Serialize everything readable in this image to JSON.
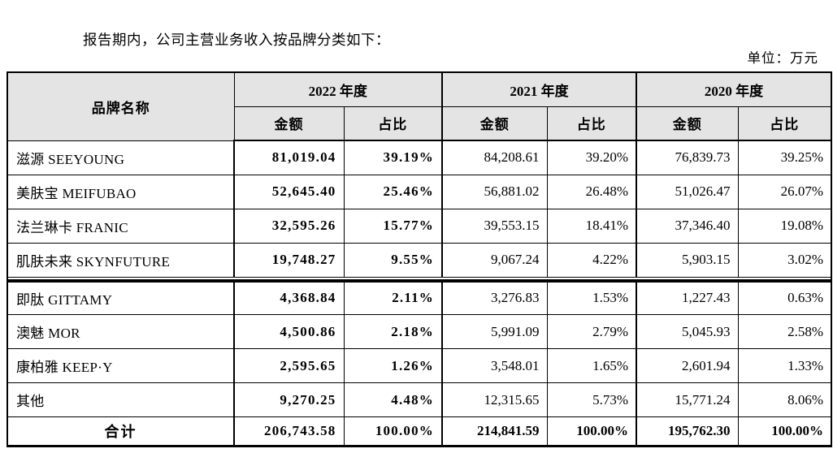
{
  "page": {
    "intro_text": "报告期内，公司主营业务收入按品牌分类如下：",
    "unit_label": "单位：万元"
  },
  "table": {
    "brand_col_header": "品牌名称",
    "year_groups": [
      {
        "label": "2022 年度",
        "amount_header": "金额",
        "ratio_header": "占比"
      },
      {
        "label": "2021 年度",
        "amount_header": "金额",
        "ratio_header": "占比"
      },
      {
        "label": "2020 年度",
        "amount_header": "金额",
        "ratio_header": "占比"
      }
    ],
    "rows": [
      {
        "brand": "滋源 SEEYOUNG",
        "values": [
          "81,019.04",
          "39.19%",
          "84,208.61",
          "39.20%",
          "76,839.73",
          "39.25%"
        ]
      },
      {
        "brand": "美肤宝 MEIFUBAO",
        "values": [
          "52,645.40",
          "25.46%",
          "56,881.02",
          "26.48%",
          "51,026.47",
          "26.07%"
        ]
      },
      {
        "brand": "法兰琳卡 FRANIC",
        "values": [
          "32,595.26",
          "15.77%",
          "39,553.15",
          "18.41%",
          "37,346.40",
          "19.08%"
        ]
      },
      {
        "brand": "肌肤未来 SKYNFUTURE",
        "values": [
          "19,748.27",
          "9.55%",
          "9,067.24",
          "4.22%",
          "5,903.15",
          "3.02%"
        ]
      },
      {
        "brand": "即肽 GITTAMY",
        "values": [
          "4,368.84",
          "2.11%",
          "3,276.83",
          "1.53%",
          "1,227.43",
          "0.63%"
        ]
      },
      {
        "brand": "澳魅 MOR",
        "values": [
          "4,500.86",
          "2.18%",
          "5,991.09",
          "2.79%",
          "5,045.93",
          "2.58%"
        ]
      },
      {
        "brand": "康柏雅 KEEP·Y",
        "values": [
          "2,595.65",
          "1.26%",
          "3,548.01",
          "1.65%",
          "2,601.94",
          "1.33%"
        ]
      },
      {
        "brand": "其他",
        "values": [
          "9,270.25",
          "4.48%",
          "12,315.65",
          "5.73%",
          "15,771.24",
          "8.06%"
        ]
      }
    ],
    "total": {
      "label": "合计",
      "values": [
        "206,743.58",
        "100.00%",
        "214,841.59",
        "100.00%",
        "195,762.30",
        "100.00%"
      ]
    }
  },
  "colors": {
    "header_bg": "#e4e4e4",
    "border": "#000000",
    "text": "#000000",
    "page_bg": "#ffffff"
  }
}
